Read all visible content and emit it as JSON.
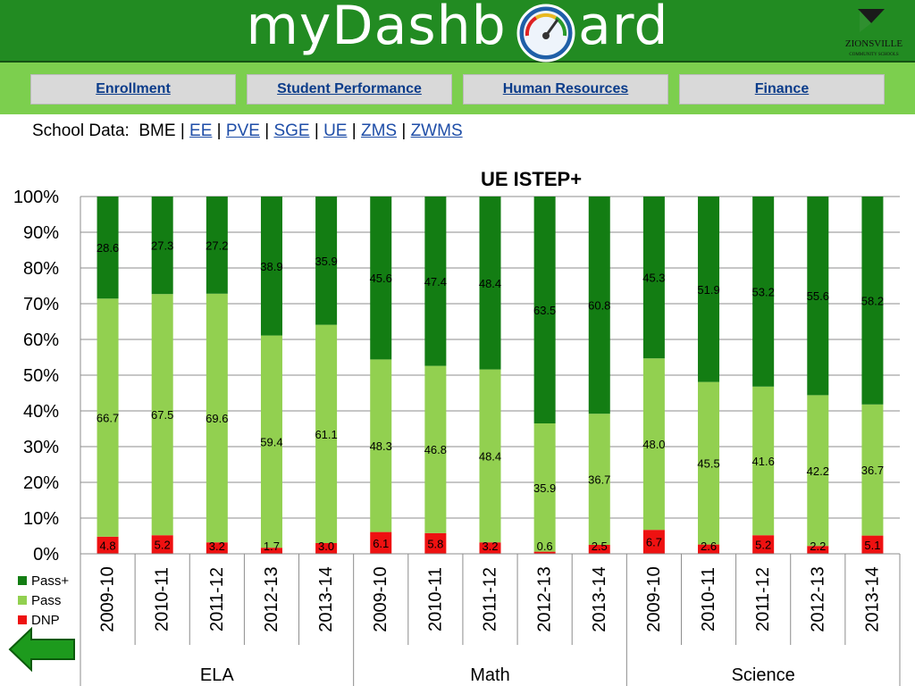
{
  "header": {
    "title": "myDashb    ard",
    "gauge_icon": "speedometer-icon",
    "logo_icon": "zionsville-seal-icon",
    "logo_text": "Zionsville Community Schools",
    "bg": "#228b22"
  },
  "nav": {
    "items": [
      {
        "label": "Enrollment"
      },
      {
        "label": "Student Performance"
      },
      {
        "label": "Human Resources"
      },
      {
        "label": "Finance"
      }
    ]
  },
  "school": {
    "prefix": "School Data:",
    "current": "BME",
    "links": [
      "EE",
      "PVE",
      "SGE",
      "UE",
      "ZMS",
      "ZWMS"
    ]
  },
  "back_icon": "left-arrow-icon",
  "colors": {
    "pass_plus": "#137d13",
    "pass": "#92d050",
    "dnp": "#ee1111"
  },
  "chart_data": {
    "type": "bar",
    "stacked": true,
    "title": "UE ISTEP+",
    "y_tick_labels": [
      "0%",
      "10%",
      "20%",
      "30%",
      "40%",
      "50%",
      "60%",
      "70%",
      "80%",
      "90%",
      "100%"
    ],
    "ylim": [
      0,
      100
    ],
    "grid": true,
    "legend_position": "bottom-left",
    "groups": [
      "ELA",
      "Math",
      "Science"
    ],
    "categories": [
      "2009-10",
      "2010-11",
      "2011-12",
      "2012-13",
      "2013-14",
      "2009-10",
      "2010-11",
      "2011-12",
      "2012-13",
      "2013-14",
      "2009-10",
      "2010-11",
      "2011-12",
      "2012-13",
      "2013-14"
    ],
    "series": [
      {
        "name": "Pass+",
        "values": [
          28.6,
          27.3,
          27.2,
          38.9,
          35.9,
          45.6,
          47.4,
          48.4,
          63.5,
          60.8,
          45.3,
          51.9,
          53.2,
          55.6,
          58.2
        ]
      },
      {
        "name": "Pass",
        "values": [
          66.7,
          67.5,
          69.6,
          59.4,
          61.1,
          48.3,
          46.8,
          48.4,
          35.9,
          36.7,
          48.0,
          45.5,
          41.6,
          42.2,
          36.7
        ]
      },
      {
        "name": "DNP",
        "values": [
          4.8,
          5.2,
          3.2,
          1.7,
          3.0,
          6.1,
          5.8,
          3.2,
          0.6,
          2.5,
          6.7,
          2.6,
          5.2,
          2.2,
          5.1
        ]
      }
    ],
    "data_labels": {
      "Pass+": [
        "28.6",
        "27.3",
        "27.2",
        "38.9",
        "35.9",
        "45.6",
        "47.4",
        "48.4",
        "63.5",
        "60.8",
        "45.3",
        "51.9",
        "53.2",
        "55.6",
        "58.2"
      ],
      "Pass": [
        "66.7",
        "67.5",
        "69.6",
        "59.4",
        "61.1",
        "48.3",
        "46.8",
        "48.4",
        "35.9",
        "36.7",
        "48.0",
        "45.5",
        "41.6",
        "42.2",
        "36.7"
      ],
      "DNP": [
        "4.8",
        "5.2",
        "3.2",
        "1.7",
        "3.0",
        "6.1",
        "5.8",
        "3.2",
        "0.6",
        "2.5",
        "6.7",
        "2.6",
        "5.2",
        "2.2",
        "5.1"
      ]
    }
  }
}
